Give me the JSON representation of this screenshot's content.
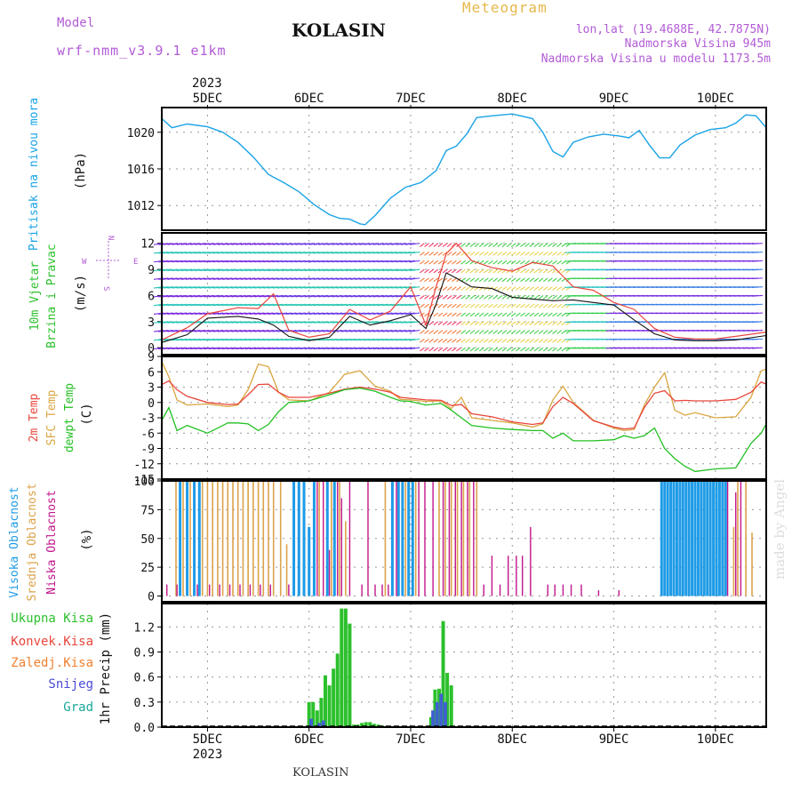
{
  "header": {
    "model_label": "Model",
    "model_name": "wrf-nmm_v3.9.1 e1km",
    "title": "KOLASIN",
    "meteogram": "Meteogram",
    "lonlat": "lon,lat (19.4688E, 42.7875N)",
    "altitude": "Nadmorska Visina 945m",
    "model_altitude": "Nadmorska Visina u modelu 1173.5m"
  },
  "footer": "KOLASIN",
  "credit": "made by Angel",
  "colors": {
    "pressure": "#1aa3e6",
    "temp2m": "#e8463c",
    "sfc": "#d9a640",
    "dewpt": "#22c022",
    "high_cloud": "#1e9be6",
    "mid_cloud": "#dca24a",
    "low_cloud": "#c0158c",
    "total_precip": "#2cc02c",
    "snow": "#4060d0",
    "grad": "#1aa89a",
    "wind_speed": "#111111",
    "gust": "#e8463c",
    "title_purple": "#b25bd6"
  },
  "chart_data": [
    {
      "type": "line",
      "panel": "pressure",
      "ylabel": [
        "Pritisak na nivou mora",
        "(hPa)"
      ],
      "yticks": [
        1012,
        1016,
        1020
      ],
      "ylim": [
        1009.3,
        1022.7
      ],
      "x_top_labels": [
        "5DEC",
        "6DEC",
        "7DEC",
        "8DEC",
        "9DEC",
        "10DEC"
      ],
      "x_top_year": "2023",
      "series": [
        {
          "x": [
            4.55,
            4.65,
            4.8,
            5.0,
            5.15,
            5.3,
            5.45,
            5.6,
            5.75,
            5.9,
            6.05,
            6.2,
            6.3,
            6.4,
            6.5,
            6.55,
            6.65,
            6.8,
            6.95,
            7.1,
            7.25,
            7.35,
            7.45,
            7.55,
            7.65,
            7.8,
            8.0,
            8.2,
            8.3,
            8.4,
            8.5,
            8.6,
            8.75,
            8.9,
            9.05,
            9.15,
            9.25,
            9.35,
            9.45,
            9.55,
            9.65,
            9.8,
            9.95,
            10.1,
            10.2,
            10.3,
            10.4,
            10.5
          ],
          "y": [
            1021.5,
            1020.5,
            1020.9,
            1020.6,
            1020.0,
            1018.9,
            1017.3,
            1015.4,
            1014.5,
            1013.5,
            1012.1,
            1011.0,
            1010.6,
            1010.5,
            1010.0,
            1009.9,
            1010.9,
            1012.8,
            1014.0,
            1014.5,
            1015.8,
            1018.0,
            1018.5,
            1019.8,
            1021.6,
            1021.8,
            1022.0,
            1021.5,
            1020.0,
            1017.9,
            1017.3,
            1018.9,
            1019.5,
            1019.8,
            1019.6,
            1019.4,
            1020.2,
            1018.6,
            1017.2,
            1017.2,
            1018.6,
            1019.7,
            1020.3,
            1020.5,
            1021.0,
            1021.9,
            1021.8,
            1020.5
          ]
        }
      ]
    },
    {
      "type": "line",
      "panel": "wind",
      "ylabel": [
        "10m Vjetar",
        "Brzina i Pravac",
        "(m/s)"
      ],
      "compass": {
        "n": "N",
        "w": "W",
        "e": "E",
        "s": "S"
      },
      "yticks": [
        0,
        3,
        6,
        9,
        12
      ],
      "ylim": [
        -0.8,
        13.2
      ],
      "series": [
        {
          "name": "speed",
          "x": [
            4.55,
            4.8,
            5.0,
            5.3,
            5.5,
            5.65,
            5.8,
            6.0,
            6.2,
            6.4,
            6.6,
            6.8,
            7.0,
            7.15,
            7.25,
            7.35,
            7.45,
            7.6,
            7.8,
            8.0,
            8.2,
            8.4,
            8.6,
            8.8,
            9.0,
            9.2,
            9.4,
            9.6,
            9.8,
            10.0,
            10.2,
            10.5
          ],
          "y": [
            0.6,
            1.5,
            3.4,
            3.6,
            3.3,
            2.6,
            1.3,
            0.8,
            1.2,
            3.6,
            2.6,
            3.1,
            3.8,
            2.2,
            5.0,
            8.6,
            8.0,
            7.0,
            6.8,
            5.8,
            5.6,
            5.4,
            5.5,
            5.2,
            4.9,
            3.2,
            1.6,
            0.9,
            0.8,
            0.8,
            0.9,
            1.4
          ]
        },
        {
          "name": "gust",
          "x": [
            4.55,
            4.8,
            5.0,
            5.3,
            5.5,
            5.65,
            5.8,
            6.0,
            6.2,
            6.4,
            6.6,
            6.8,
            7.0,
            7.15,
            7.25,
            7.35,
            7.45,
            7.6,
            7.8,
            8.0,
            8.2,
            8.4,
            8.6,
            8.8,
            9.0,
            9.2,
            9.4,
            9.6,
            9.8,
            10.0,
            10.2,
            10.5
          ],
          "y": [
            0.9,
            2.3,
            3.9,
            4.6,
            4.5,
            6.2,
            2.0,
            1.2,
            1.6,
            4.4,
            3.2,
            4.2,
            7.0,
            2.6,
            7.0,
            10.8,
            12.0,
            10.0,
            9.2,
            8.8,
            9.8,
            9.4,
            7.0,
            6.6,
            5.2,
            4.4,
            2.2,
            1.2,
            1.0,
            1.0,
            1.3,
            1.8
          ]
        }
      ]
    },
    {
      "type": "line",
      "panel": "temperature",
      "ylabel": [
        "2m Temp",
        "SFC Temp",
        "dewpt Temp",
        "(C)"
      ],
      "yticks": [
        -15,
        -12,
        -9,
        -6,
        -3,
        0,
        3,
        6,
        9
      ],
      "ylim": [
        -15,
        9
      ],
      "series": [
        {
          "name": "2m Temp",
          "x": [
            4.55,
            4.62,
            4.7,
            4.8,
            5.0,
            5.2,
            5.3,
            5.4,
            5.5,
            5.6,
            5.7,
            5.8,
            6.0,
            6.2,
            6.35,
            6.5,
            6.65,
            6.8,
            6.9,
            7.0,
            7.15,
            7.3,
            7.4,
            7.5,
            7.6,
            7.8,
            8.0,
            8.2,
            8.3,
            8.4,
            8.5,
            8.6,
            8.8,
            9.0,
            9.1,
            9.2,
            9.3,
            9.4,
            9.5,
            9.6,
            9.7,
            9.8,
            10.0,
            10.2,
            10.35,
            10.45,
            10.5
          ],
          "y": [
            3.5,
            4.2,
            2.5,
            1.2,
            0.0,
            -0.4,
            -0.3,
            1.5,
            3.5,
            3.6,
            2.0,
            1.0,
            1.0,
            1.8,
            2.6,
            3.0,
            2.6,
            2.0,
            1.0,
            0.8,
            0.5,
            0.4,
            -0.6,
            -0.4,
            -2.2,
            -2.8,
            -3.8,
            -4.3,
            -4.0,
            -0.8,
            1.0,
            -0.2,
            -3.6,
            -4.8,
            -5.2,
            -5.0,
            -1.0,
            1.8,
            2.3,
            0.3,
            0.4,
            0.3,
            0.3,
            0.6,
            2.0,
            4.0,
            3.6
          ]
        },
        {
          "name": "SFC Temp",
          "x": [
            4.55,
            4.62,
            4.7,
            4.8,
            5.0,
            5.2,
            5.3,
            5.4,
            5.5,
            5.6,
            5.7,
            5.8,
            6.0,
            6.2,
            6.35,
            6.5,
            6.65,
            6.8,
            6.9,
            7.0,
            7.15,
            7.3,
            7.4,
            7.5,
            7.6,
            7.8,
            8.0,
            8.2,
            8.3,
            8.4,
            8.5,
            8.6,
            8.8,
            9.0,
            9.1,
            9.2,
            9.3,
            9.4,
            9.5,
            9.6,
            9.7,
            9.8,
            10.0,
            10.2,
            10.35,
            10.45,
            10.5
          ],
          "y": [
            8.0,
            5.0,
            0.5,
            -0.5,
            -0.3,
            -0.8,
            -0.5,
            2.5,
            7.5,
            7.0,
            2.0,
            0.5,
            0.3,
            2.0,
            5.5,
            6.2,
            3.2,
            2.2,
            0.6,
            0.5,
            0.2,
            0.3,
            -1.2,
            1.0,
            -3.0,
            -3.5,
            -4.0,
            -4.8,
            -4.2,
            0.5,
            3.2,
            0.0,
            -3.5,
            -5.0,
            -5.5,
            -5.3,
            -0.5,
            3.0,
            5.8,
            -1.5,
            -2.5,
            -2.0,
            -3.0,
            -2.8,
            1.0,
            6.2,
            6.5
          ]
        },
        {
          "name": "dewpt Temp",
          "x": [
            4.55,
            4.62,
            4.7,
            4.8,
            5.0,
            5.2,
            5.3,
            5.4,
            5.5,
            5.6,
            5.7,
            5.8,
            6.0,
            6.2,
            6.35,
            6.5,
            6.65,
            6.8,
            6.9,
            7.0,
            7.15,
            7.3,
            7.4,
            7.5,
            7.6,
            7.8,
            8.0,
            8.2,
            8.3,
            8.4,
            8.5,
            8.6,
            8.8,
            9.0,
            9.1,
            9.2,
            9.3,
            9.4,
            9.5,
            9.6,
            9.7,
            9.8,
            10.0,
            10.2,
            10.35,
            10.45,
            10.5
          ],
          "y": [
            -3.5,
            -1.0,
            -5.5,
            -4.5,
            -6.0,
            -4.0,
            -4.0,
            -4.2,
            -5.5,
            -4.3,
            -1.8,
            0.0,
            0.3,
            1.5,
            2.5,
            2.8,
            2.2,
            1.0,
            0.3,
            0.2,
            -0.5,
            -0.2,
            -1.5,
            -3.0,
            -4.5,
            -5.0,
            -5.3,
            -5.5,
            -5.5,
            -7.0,
            -6.0,
            -7.5,
            -7.5,
            -7.3,
            -6.5,
            -7.0,
            -6.5,
            -5.0,
            -9.0,
            -11.0,
            -12.5,
            -13.5,
            -13.0,
            -12.8,
            -8.0,
            -6.0,
            -4.2
          ]
        }
      ]
    },
    {
      "type": "bar",
      "panel": "cloud",
      "ylabel": [
        "Visoka Oblacnost",
        "Srednja Oblacnost",
        "Niska Oblacnost",
        "(%)"
      ],
      "yticks": [
        0,
        25,
        50,
        75,
        100
      ],
      "ylim": [
        -5,
        100
      ],
      "series": [
        {
          "name": "Visoka Oblacnost",
          "x": [
            4.73,
            4.8,
            4.87,
            4.92,
            5.85,
            5.9,
            5.95,
            6.0,
            6.05,
            6.18,
            6.25,
            6.82,
            6.88,
            6.92,
            6.98,
            7.02,
            9.47,
            9.5,
            9.53,
            9.56,
            9.59,
            9.62,
            9.65,
            9.68,
            9.71,
            9.74,
            9.77,
            9.8,
            9.83,
            9.86,
            9.89,
            9.92,
            9.95,
            9.98,
            10.01,
            10.04,
            10.07,
            10.1
          ],
          "y": [
            100,
            100,
            100,
            100,
            100,
            100,
            100,
            60,
            100,
            100,
            100,
            100,
            100,
            100,
            100,
            100,
            100,
            100,
            100,
            100,
            100,
            100,
            100,
            100,
            100,
            100,
            100,
            100,
            100,
            100,
            100,
            100,
            100,
            100,
            100,
            100,
            100,
            100
          ]
        },
        {
          "name": "Srednja Oblacnost",
          "x": [
            4.69,
            4.76,
            4.83,
            4.95,
            5.0,
            5.05,
            5.1,
            5.15,
            5.2,
            5.25,
            5.3,
            5.35,
            5.4,
            5.45,
            5.5,
            5.55,
            5.6,
            5.65,
            5.72,
            5.78,
            6.1,
            6.22,
            6.3,
            6.36,
            6.75,
            6.95,
            7.05,
            7.28,
            7.34,
            7.4,
            7.46,
            7.52,
            7.58,
            7.65,
            10.18,
            10.22,
            10.3,
            10.36
          ],
          "y": [
            100,
            100,
            100,
            100,
            100,
            100,
            100,
            100,
            100,
            100,
            100,
            100,
            100,
            100,
            100,
            100,
            100,
            100,
            100,
            45,
            100,
            100,
            100,
            65,
            100,
            100,
            100,
            100,
            100,
            100,
            100,
            100,
            100,
            100,
            60,
            100,
            100,
            55
          ]
        },
        {
          "name": "Niska Oblacnost",
          "x": [
            4.6,
            4.7,
            4.9,
            5.02,
            5.12,
            5.22,
            5.32,
            5.42,
            5.52,
            5.62,
            5.8,
            6.08,
            6.14,
            6.2,
            6.28,
            6.32,
            6.4,
            6.52,
            6.58,
            6.65,
            6.72,
            6.78,
            6.86,
            7.08,
            7.14,
            7.22,
            7.32,
            7.38,
            7.44,
            7.5,
            7.56,
            7.62,
            7.72,
            7.8,
            7.88,
            7.96,
            8.04,
            8.1,
            8.18,
            8.35,
            8.42,
            8.5,
            8.58,
            8.68,
            8.85,
            9.05,
            10.12,
            10.2,
            10.25
          ],
          "y": [
            10,
            10,
            10,
            10,
            10,
            10,
            10,
            10,
            10,
            10,
            10,
            100,
            100,
            40,
            100,
            85,
            100,
            10,
            100,
            10,
            10,
            10,
            100,
            100,
            100,
            100,
            100,
            100,
            100,
            100,
            100,
            100,
            10,
            35,
            10,
            35,
            35,
            35,
            60,
            10,
            10,
            10,
            10,
            10,
            5,
            5,
            100,
            90,
            100
          ]
        }
      ]
    },
    {
      "type": "bar",
      "panel": "precip",
      "ylabel": [
        "1hr Precip (mm)"
      ],
      "legend": [
        "Ukupna Kisa",
        "Konvek.Kisa",
        "Zaledj.Kisa",
        "Snijeg",
        "Grad"
      ],
      "yticks": [
        0,
        0.3,
        0.6,
        0.9,
        1.2
      ],
      "ylim": [
        0,
        1.48
      ],
      "x_labels": [
        "5DEC",
        "6DEC",
        "7DEC",
        "8DEC",
        "9DEC",
        "10DEC"
      ],
      "x_year": "2023",
      "series": [
        {
          "name": "Ukupna Kisa",
          "x": [
            6.0,
            6.04,
            6.08,
            6.12,
            6.16,
            6.2,
            6.24,
            6.28,
            6.32,
            6.36,
            6.4,
            6.44,
            6.48,
            6.52,
            6.56,
            6.6,
            6.64,
            6.68,
            6.72,
            6.76,
            6.8,
            6.84,
            7.2,
            7.24,
            7.28,
            7.32,
            7.36,
            7.4
          ],
          "y": [
            0.3,
            0.3,
            0.2,
            0.35,
            0.62,
            0.5,
            0.7,
            0.88,
            1.42,
            1.42,
            1.24,
            0.03,
            0.03,
            0.05,
            0.06,
            0.06,
            0.04,
            0.03,
            0.02,
            0.01,
            0.01,
            0.01,
            0.12,
            0.45,
            0.46,
            1.27,
            0.65,
            0.5
          ]
        },
        {
          "name": "Snijeg",
          "x": [
            6.02,
            6.1,
            6.14,
            7.22,
            7.26,
            7.3,
            7.34
          ],
          "y": [
            0.1,
            0.05,
            0.08,
            0.2,
            0.3,
            0.4,
            0.3
          ]
        }
      ]
    }
  ]
}
